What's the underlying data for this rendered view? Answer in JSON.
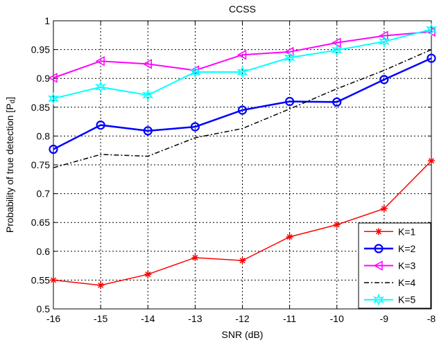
{
  "chart_data": {
    "type": "line",
    "title": "CCSS",
    "xlabel": "SNR (dB)",
    "ylabel": "Probability of true detection [P",
    "ylabel_sub": "d",
    "ylabel_end": "]",
    "x": [
      -16,
      -15,
      -14,
      -13,
      -12,
      -11,
      -10,
      -9,
      -8
    ],
    "xlim": [
      -16,
      -8
    ],
    "ylim": [
      0.5,
      1
    ],
    "xticks": [
      "-16",
      "-15",
      "-14",
      "-13",
      "-12",
      "-11",
      "-10",
      "-9",
      "-8"
    ],
    "yticks": [
      "0.5",
      "0.55",
      "0.6",
      "0.65",
      "0.7",
      "0.75",
      "0.8",
      "0.85",
      "0.9",
      "0.95",
      "1"
    ],
    "grid": true,
    "legend_position": "bottom-right",
    "series": [
      {
        "name": "K=1",
        "color": "#ff0000",
        "marker": "star",
        "dash": "solid",
        "values": [
          0.55,
          0.541,
          0.56,
          0.589,
          0.584,
          0.625,
          0.646,
          0.674,
          0.757
        ]
      },
      {
        "name": "K=2",
        "color": "#0000ff",
        "marker": "circle",
        "dash": "solid",
        "values": [
          0.777,
          0.819,
          0.809,
          0.816,
          0.845,
          0.86,
          0.859,
          0.898,
          0.935
        ]
      },
      {
        "name": "K=3",
        "color": "#ff00ff",
        "marker": "triangle-left",
        "dash": "solid",
        "values": [
          0.901,
          0.93,
          0.925,
          0.914,
          0.941,
          0.946,
          0.962,
          0.974,
          0.981
        ]
      },
      {
        "name": "K=4",
        "color": "#000000",
        "marker": "none",
        "dash": "dashdot",
        "values": [
          0.745,
          0.768,
          0.765,
          0.797,
          0.813,
          0.847,
          0.882,
          0.914,
          0.95
        ]
      },
      {
        "name": "K=5",
        "color": "#00ffff",
        "marker": "hexagram",
        "dash": "solid",
        "values": [
          0.865,
          0.885,
          0.871,
          0.911,
          0.911,
          0.936,
          0.949,
          0.964,
          0.985
        ]
      }
    ]
  }
}
